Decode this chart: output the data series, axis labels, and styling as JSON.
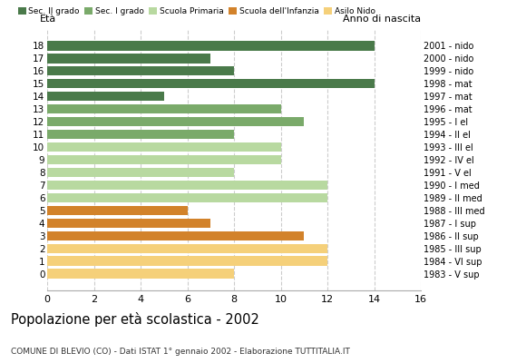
{
  "ages": [
    18,
    17,
    16,
    15,
    14,
    13,
    12,
    11,
    10,
    9,
    8,
    7,
    6,
    5,
    4,
    3,
    2,
    1,
    0
  ],
  "values": [
    14,
    7,
    8,
    14,
    5,
    10,
    11,
    8,
    10,
    10,
    8,
    12,
    12,
    6,
    7,
    11,
    12,
    12,
    8
  ],
  "anno_nascita": [
    "1983 - V sup",
    "1984 - VI sup",
    "1985 - III sup",
    "1986 - II sup",
    "1987 - I sup",
    "1988 - III med",
    "1989 - II med",
    "1990 - I med",
    "1991 - V el",
    "1992 - IV el",
    "1993 - III el",
    "1994 - II el",
    "1995 - I el",
    "1996 - mat",
    "1997 - mat",
    "1998 - mat",
    "1999 - nido",
    "2000 - nido",
    "2001 - nido"
  ],
  "categories": {
    "Sec. II grado": {
      "ages": [
        18,
        17,
        16,
        15,
        14
      ],
      "color": "#4a7a4a"
    },
    "Sec. I grado": {
      "ages": [
        13,
        12,
        11
      ],
      "color": "#7aaa6a"
    },
    "Scuola Primaria": {
      "ages": [
        10,
        9,
        8,
        7,
        6
      ],
      "color": "#b8d9a0"
    },
    "Scuola dell'Infanzia": {
      "ages": [
        5,
        4,
        3
      ],
      "color": "#d2822a"
    },
    "Asilo Nido": {
      "ages": [
        2,
        1,
        0
      ],
      "color": "#f5d07a"
    }
  },
  "title": "Popolazione per età scolastica - 2002",
  "subtitle": "COMUNE DI BLEVIO (CO) - Dati ISTAT 1° gennaio 2002 - Elaborazione TUTTITALIA.IT",
  "xlabel_left": "Età",
  "xlabel_right": "Anno di nascita",
  "xlim": [
    0,
    16
  ],
  "xticks": [
    0,
    2,
    4,
    6,
    8,
    10,
    12,
    14,
    16
  ],
  "bg_color": "#ffffff",
  "grid_color": "#cccccc",
  "legend_colors": {
    "Sec. II grado": "#4a7a4a",
    "Sec. I grado": "#7aaa6a",
    "Scuola Primaria": "#b8d9a0",
    "Scuola dell'Infanzia": "#d2822a",
    "Asilo Nido": "#f5d07a"
  }
}
